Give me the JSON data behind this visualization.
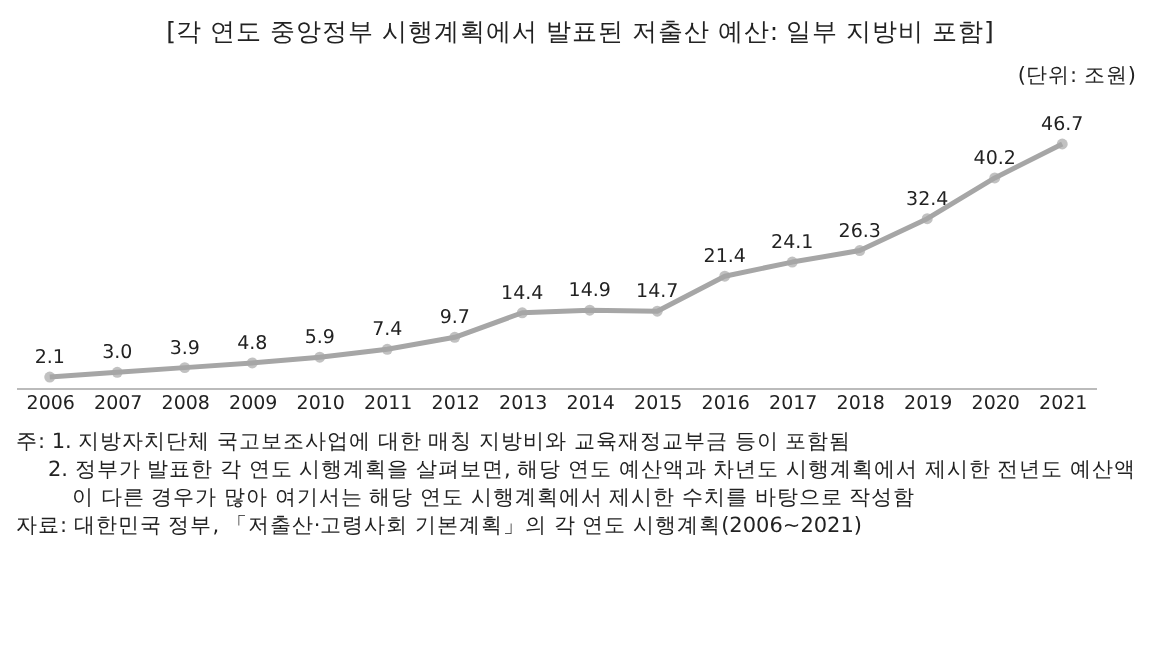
{
  "chart_data": {
    "type": "line",
    "title": "[각 연도 중앙정부 시행계획에서 발표된 저출산 예산: 일부 지방비 포함]",
    "subtitle": "(단위: 조원)",
    "categories": [
      "2006",
      "2007",
      "2008",
      "2009",
      "2010",
      "2011",
      "2012",
      "2013",
      "2014",
      "2015",
      "2016",
      "2017",
      "2018",
      "2019",
      "2020",
      "2021"
    ],
    "series": [
      {
        "color": "#a6a6a6",
        "values": [
          2.1,
          3.0,
          3.9,
          4.8,
          5.9,
          7.4,
          9.7,
          14.4,
          14.9,
          14.7,
          21.4,
          24.1,
          26.3,
          32.4,
          40.2,
          46.7
        ],
        "value_labels": [
          "2.1",
          "3.0",
          "3.9",
          "4.8",
          "5.9",
          "7.4",
          "9.7",
          "14.4",
          "14.9",
          "14.7",
          "21.4",
          "24.1",
          "26.3",
          "32.4",
          "40.2",
          "46.7"
        ]
      }
    ],
    "marker": "circle",
    "tick_labels": "x",
    "grid": false,
    "annotations": [
      "주: 1. 지방자치단체 국고보조사업에 대한 매칭 지방비와 교육재정교부금 등이 포함됨",
      "2. 정부가 발표한 각 연도 시행계획을 살펴보면, 해당 연도 예산액과 차년도 시행계획에서 제시한 전년도 예산액이 다른 경우가 많아 여기서는 해당 연도 시행계획에서 제시한 수치를 바탕으로 작성함",
      "자료: 대한민국 정부, 「저출산·고령사회 기본계획」의 각 연도 시행계획(2006~2021)"
    ]
  }
}
